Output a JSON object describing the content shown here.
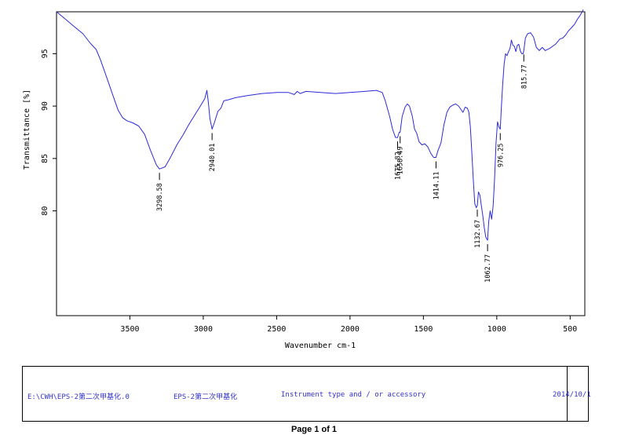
{
  "chart_data": {
    "type": "line",
    "title": "",
    "xlabel": "Wavenumber cm-1",
    "ylabel": "Transmittance [%]",
    "xlim": [
      4000,
      400
    ],
    "ylim": [
      70,
      99
    ],
    "x_reversed": true,
    "grid": false,
    "line_color": "#2b2bd9",
    "xticks": [
      3500,
      3000,
      2500,
      2000,
      1500,
      1000,
      500
    ],
    "yticks": [
      80,
      85,
      90,
      95
    ],
    "series": [
      {
        "values": [
          [
            4000,
            99.0
          ],
          [
            3940,
            98.3
          ],
          [
            3880,
            97.6
          ],
          [
            3820,
            96.9
          ],
          [
            3770,
            96.0
          ],
          [
            3730,
            95.4
          ],
          [
            3700,
            94.4
          ],
          [
            3660,
            92.8
          ],
          [
            3620,
            91.2
          ],
          [
            3580,
            89.6
          ],
          [
            3550,
            88.9
          ],
          [
            3520,
            88.6
          ],
          [
            3480,
            88.4
          ],
          [
            3440,
            88.1
          ],
          [
            3400,
            87.3
          ],
          [
            3360,
            85.8
          ],
          [
            3320,
            84.4
          ],
          [
            3298.58,
            84.0
          ],
          [
            3260,
            84.2
          ],
          [
            3220,
            85.2
          ],
          [
            3180,
            86.3
          ],
          [
            3140,
            87.2
          ],
          [
            3100,
            88.2
          ],
          [
            3060,
            89.1
          ],
          [
            3020,
            90.0
          ],
          [
            2990,
            90.7
          ],
          [
            2975,
            91.5
          ],
          [
            2965,
            90.3
          ],
          [
            2955,
            88.8
          ],
          [
            2940.01,
            87.8
          ],
          [
            2925,
            88.4
          ],
          [
            2900,
            89.5
          ],
          [
            2880,
            89.8
          ],
          [
            2860,
            90.5
          ],
          [
            2830,
            90.6
          ],
          [
            2780,
            90.8
          ],
          [
            2700,
            91.0
          ],
          [
            2600,
            91.2
          ],
          [
            2500,
            91.3
          ],
          [
            2420,
            91.3
          ],
          [
            2380,
            91.1
          ],
          [
            2360,
            91.4
          ],
          [
            2340,
            91.2
          ],
          [
            2300,
            91.4
          ],
          [
            2200,
            91.3
          ],
          [
            2100,
            91.2
          ],
          [
            2000,
            91.3
          ],
          [
            1900,
            91.4
          ],
          [
            1820,
            91.5
          ],
          [
            1780,
            91.3
          ],
          [
            1760,
            90.5
          ],
          [
            1730,
            89.0
          ],
          [
            1710,
            87.8
          ],
          [
            1690,
            87.0
          ],
          [
            1675.82,
            87.0
          ],
          [
            1665,
            87.5
          ],
          [
            1658.49,
            87.5
          ],
          [
            1645,
            89.0
          ],
          [
            1625,
            89.9
          ],
          [
            1610,
            90.2
          ],
          [
            1595,
            90.0
          ],
          [
            1575,
            89.0
          ],
          [
            1560,
            87.8
          ],
          [
            1545,
            87.4
          ],
          [
            1530,
            86.6
          ],
          [
            1510,
            86.3
          ],
          [
            1490,
            86.4
          ],
          [
            1470,
            86.1
          ],
          [
            1450,
            85.5
          ],
          [
            1430,
            85.1
          ],
          [
            1414.11,
            85.1
          ],
          [
            1400,
            85.8
          ],
          [
            1380,
            86.5
          ],
          [
            1360,
            88.2
          ],
          [
            1340,
            89.4
          ],
          [
            1320,
            89.9
          ],
          [
            1300,
            90.1
          ],
          [
            1280,
            90.2
          ],
          [
            1260,
            90.0
          ],
          [
            1245,
            89.7
          ],
          [
            1230,
            89.4
          ],
          [
            1215,
            89.9
          ],
          [
            1200,
            89.8
          ],
          [
            1190,
            89.4
          ],
          [
            1180,
            88.0
          ],
          [
            1170,
            85.5
          ],
          [
            1160,
            83.0
          ],
          [
            1150,
            80.7
          ],
          [
            1140,
            80.3
          ],
          [
            1132.67,
            80.5
          ],
          [
            1125,
            81.8
          ],
          [
            1115,
            81.5
          ],
          [
            1105,
            80.5
          ],
          [
            1095,
            79.5
          ],
          [
            1085,
            78.4
          ],
          [
            1075,
            77.5
          ],
          [
            1062.77,
            77.2
          ],
          [
            1055,
            79.0
          ],
          [
            1045,
            80.0
          ],
          [
            1035,
            79.2
          ],
          [
            1025,
            80.5
          ],
          [
            1015,
            83.0
          ],
          [
            1005,
            86.5
          ],
          [
            995,
            88.5
          ],
          [
            985,
            88.0
          ],
          [
            976.25,
            87.8
          ],
          [
            970,
            89.5
          ],
          [
            960,
            92.0
          ],
          [
            950,
            94.0
          ],
          [
            940,
            95.0
          ],
          [
            930,
            94.8
          ],
          [
            920,
            95.2
          ],
          [
            910,
            95.5
          ],
          [
            900,
            96.3
          ],
          [
            890,
            95.8
          ],
          [
            880,
            95.7
          ],
          [
            870,
            95.2
          ],
          [
            860,
            95.8
          ],
          [
            850,
            95.9
          ],
          [
            840,
            95.3
          ],
          [
            830,
            95.0
          ],
          [
            820,
            95.0
          ],
          [
            815.77,
            95.3
          ],
          [
            805,
            96.5
          ],
          [
            790,
            96.9
          ],
          [
            770,
            97.0
          ],
          [
            750,
            96.6
          ],
          [
            730,
            95.6
          ],
          [
            710,
            95.3
          ],
          [
            690,
            95.6
          ],
          [
            670,
            95.3
          ],
          [
            640,
            95.5
          ],
          [
            600,
            95.9
          ],
          [
            570,
            96.4
          ],
          [
            550,
            96.5
          ],
          [
            530,
            96.8
          ],
          [
            510,
            97.2
          ],
          [
            490,
            97.5
          ],
          [
            470,
            97.8
          ],
          [
            450,
            98.3
          ],
          [
            430,
            98.7
          ],
          [
            410,
            99.2
          ]
        ]
      }
    ],
    "peak_labels": [
      {
        "x": 3298.58,
        "y": 84.0,
        "text": "3298.58"
      },
      {
        "x": 2940.01,
        "y": 87.8,
        "text": "2940.01"
      },
      {
        "x": 1675.82,
        "y": 87.0,
        "text": "1675.82"
      },
      {
        "x": 1658.49,
        "y": 87.5,
        "text": "1658.49"
      },
      {
        "x": 1414.11,
        "y": 85.1,
        "text": "1414.11"
      },
      {
        "x": 1132.67,
        "y": 80.5,
        "text": "1132.67"
      },
      {
        "x": 1062.77,
        "y": 77.2,
        "text": "1062.77"
      },
      {
        "x": 976.25,
        "y": 87.8,
        "text": "976.25"
      },
      {
        "x": 815.77,
        "y": 95.3,
        "text": "815.77"
      }
    ]
  },
  "footer": {
    "file_path": "E:\\CWH\\EPS-2第二次甲基化.0",
    "sample_name": "EPS-2第二次甲基化",
    "instrument": "Instrument type and / or accessory",
    "date": "2014/10/1",
    "text_color": "#3333cc"
  },
  "page": {
    "label": "Page 1 of 1"
  }
}
